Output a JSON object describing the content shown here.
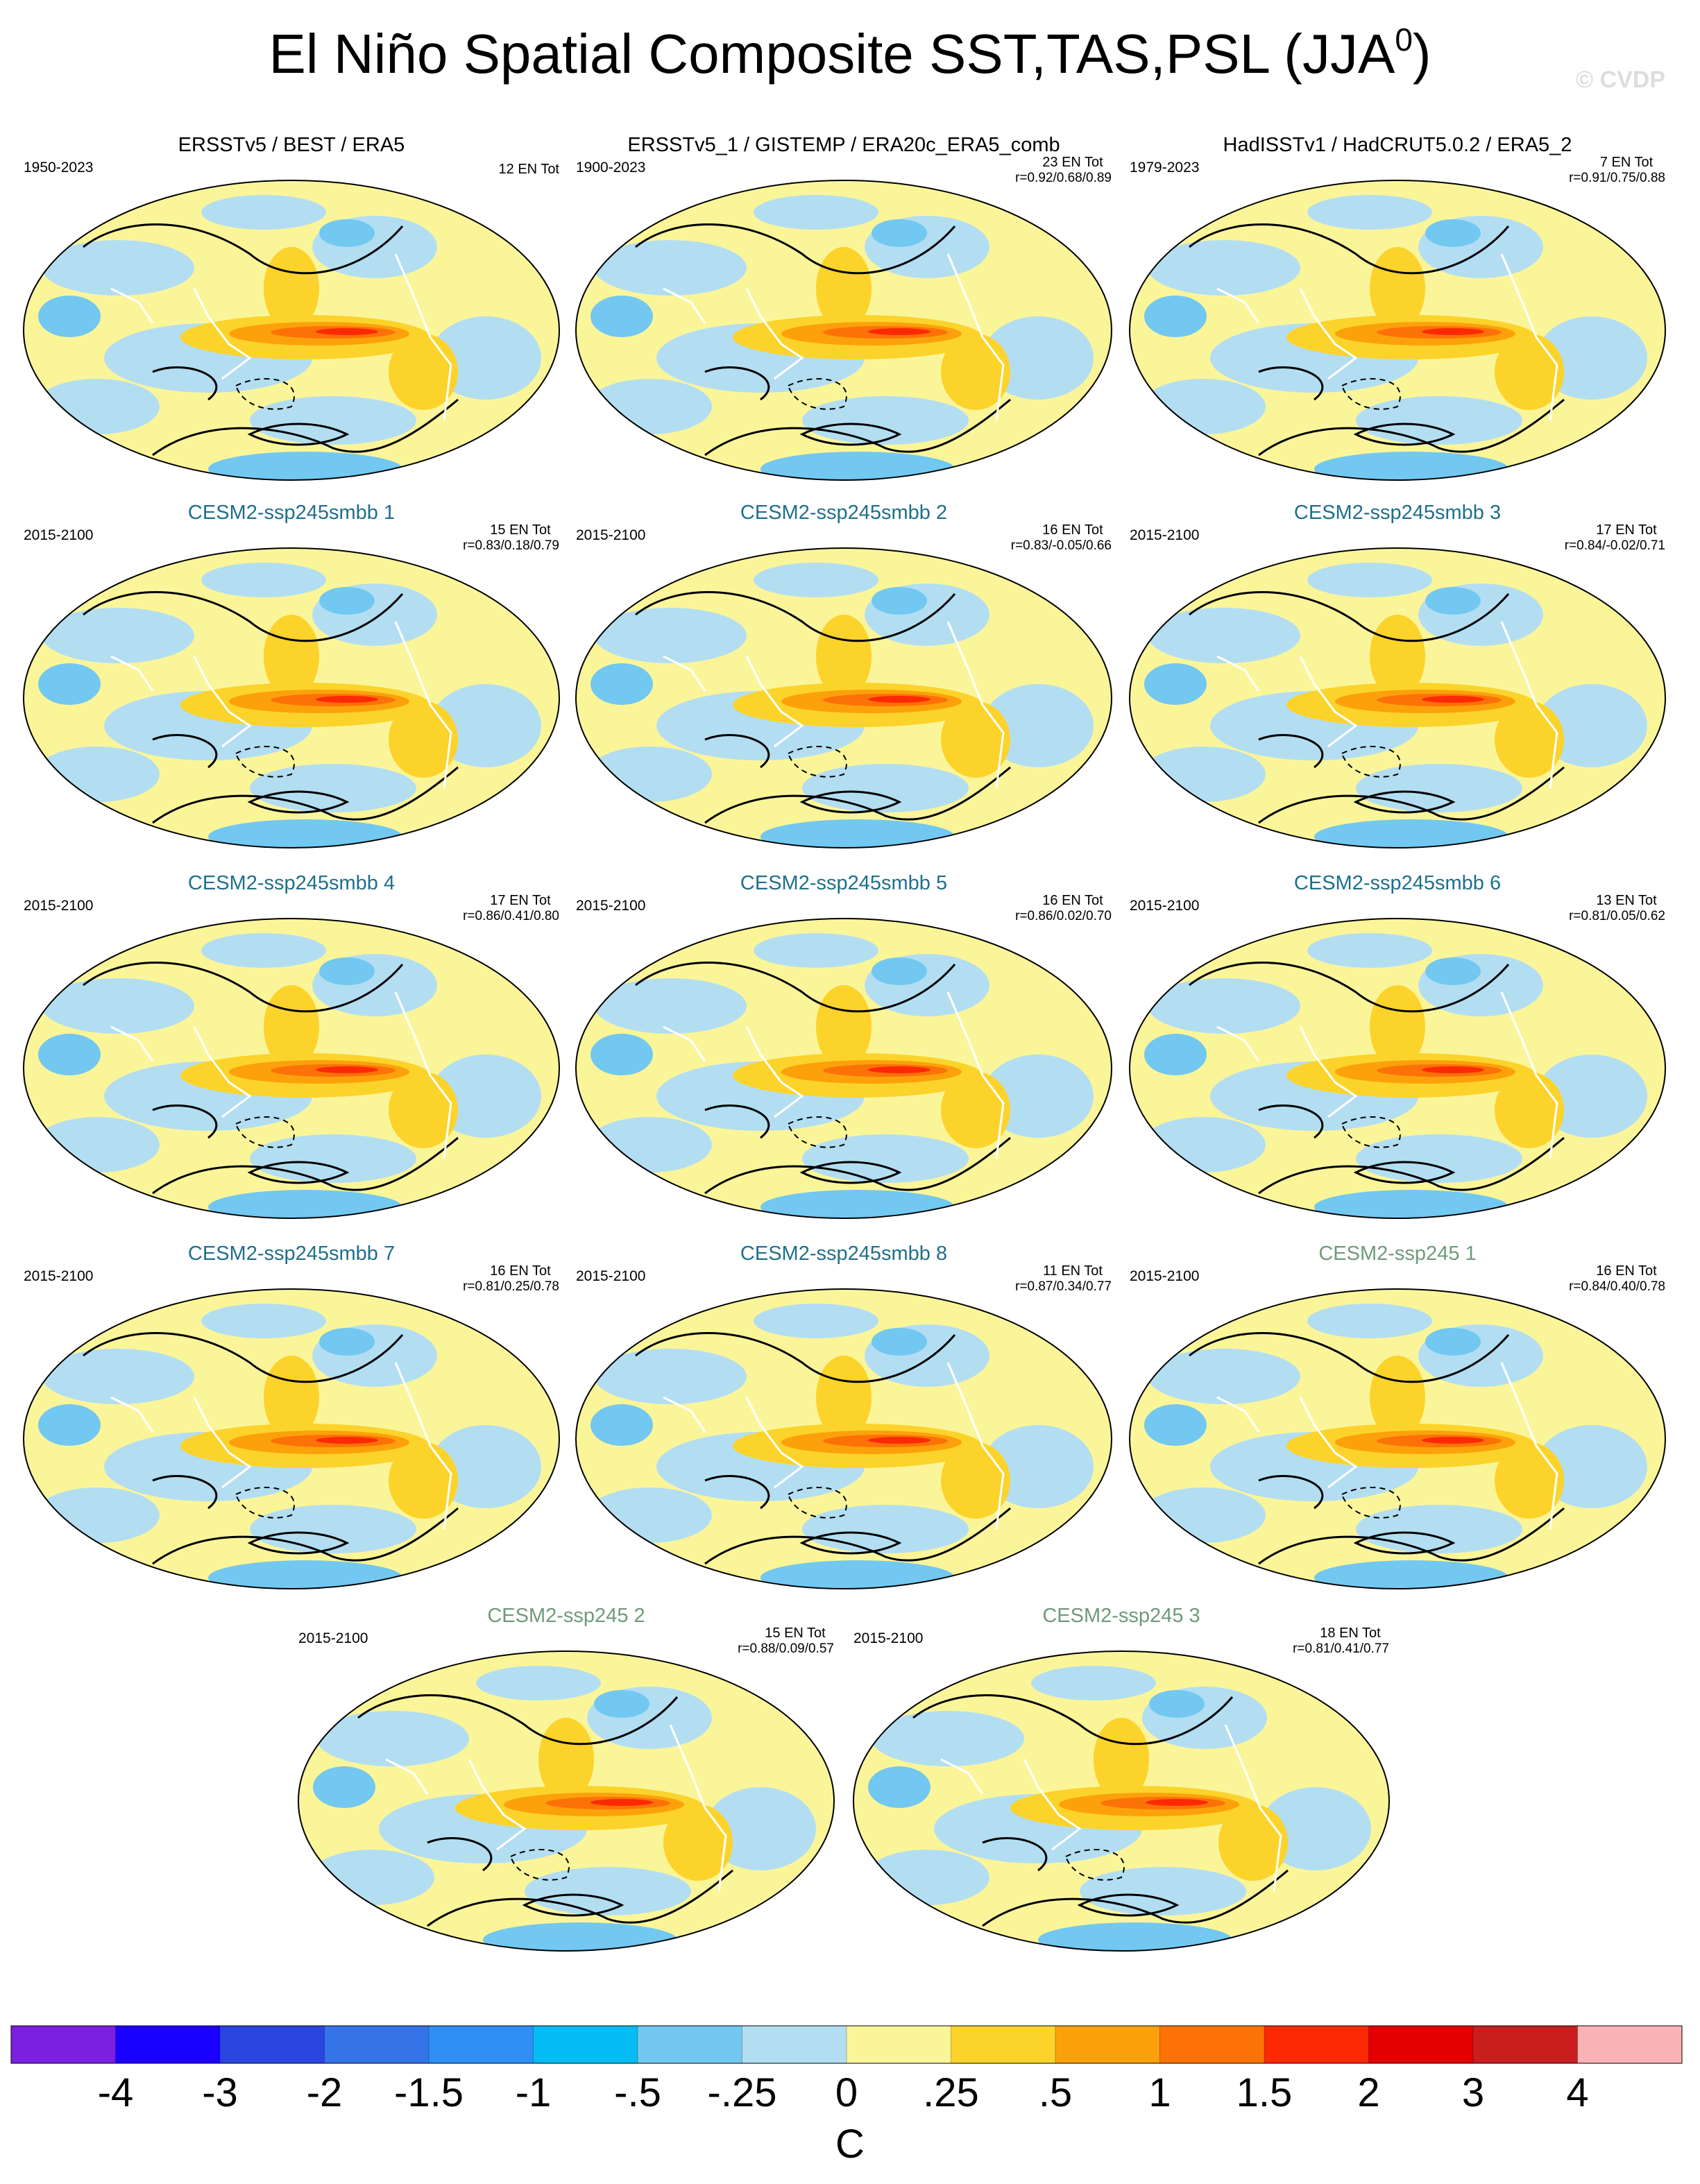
{
  "chart_data": {
    "type": "map-panels",
    "title": "El Niño Spatial Composite SST,TAS,PSL (JJA",
    "title_superscript": "0",
    "title_end": ")",
    "watermark": "© CVDP",
    "panels": [
      {
        "title": "ERSSTv5 / BEST / ERA5",
        "color": "#000000",
        "period": "1950-2023",
        "count": "12 EN Tot"
      },
      {
        "title": "ERSSTv5_1 / GISTEMP / ERA20c_ERA5_comb",
        "color": "#000000",
        "period": "1900-2023",
        "count": "23 EN Tot",
        "r": "r=0.92/0.68/0.89"
      },
      {
        "title": "HadISSTv1 / HadCRUT5.0.2 / ERA5_2",
        "color": "#000000",
        "period": "1979-2023",
        "count": "7 EN Tot",
        "r": "r=0.91/0.75/0.88"
      },
      {
        "title": "CESM2-ssp245smbb 1",
        "color": "#1f6f8b",
        "period": "2015-2100",
        "count": "15 EN Tot",
        "r": "r=0.83/0.18/0.79"
      },
      {
        "title": "CESM2-ssp245smbb 2",
        "color": "#1f6f8b",
        "period": "2015-2100",
        "count": "16 EN Tot",
        "r": "r=0.83/-0.05/0.66"
      },
      {
        "title": "CESM2-ssp245smbb 3",
        "color": "#1f6f8b",
        "period": "2015-2100",
        "count": "17 EN Tot",
        "r": "r=0.84/-0.02/0.71"
      },
      {
        "title": "CESM2-ssp245smbb 4",
        "color": "#1f6f8b",
        "period": "2015-2100",
        "count": "17 EN Tot",
        "r": "r=0.86/0.41/0.80"
      },
      {
        "title": "CESM2-ssp245smbb 5",
        "color": "#1f6f8b",
        "period": "2015-2100",
        "count": "16 EN Tot",
        "r": "r=0.86/0.02/0.70"
      },
      {
        "title": "CESM2-ssp245smbb 6",
        "color": "#1f6f8b",
        "period": "2015-2100",
        "count": "13 EN Tot",
        "r": "r=0.81/0.05/0.62"
      },
      {
        "title": "CESM2-ssp245smbb 7",
        "color": "#1f6f8b",
        "period": "2015-2100",
        "count": "16 EN Tot",
        "r": "r=0.81/0.25/0.78"
      },
      {
        "title": "CESM2-ssp245smbb 8",
        "color": "#1f6f8b",
        "period": "2015-2100",
        "count": "11 EN Tot",
        "r": "r=0.87/0.34/0.77"
      },
      {
        "title": "CESM2-ssp245 1",
        "color": "#6f9a7a",
        "period": "2015-2100",
        "count": "16 EN Tot",
        "r": "r=0.84/0.40/0.78"
      },
      {
        "title": "CESM2-ssp245 2",
        "color": "#6f9a7a",
        "period": "2015-2100",
        "count": "15 EN Tot",
        "r": "r=0.88/0.09/0.57"
      },
      {
        "title": "CESM2-ssp245 3",
        "color": "#6f9a7a",
        "period": "2015-2100",
        "count": "18 EN Tot",
        "r": "r=0.81/0.41/0.77"
      }
    ],
    "colorbar": {
      "colors": [
        "#7b1fe0",
        "#1a00ff",
        "#2a45e0",
        "#3573e8",
        "#2f8ff5",
        "#06bcf5",
        "#72c8f0",
        "#b3def2",
        "#fbf59a",
        "#fcd32a",
        "#fca10b",
        "#fc7207",
        "#fb2a04",
        "#e20000",
        "#c81e1e",
        "#f9b3b6"
      ],
      "ticks": [
        -4,
        -3,
        -2,
        {
          "value": -1.5,
          "label": "-1.5"
        },
        -1,
        {
          "value": -0.5,
          "label": "-.5"
        },
        {
          "value": -0.25,
          "label": "-.25"
        },
        0,
        {
          "value": 0.25,
          "label": ".25"
        },
        {
          "value": 0.5,
          "label": ".5"
        },
        1,
        {
          "value": 1.5,
          "label": "1.5"
        },
        2,
        3,
        4
      ],
      "unit": "C"
    }
  }
}
